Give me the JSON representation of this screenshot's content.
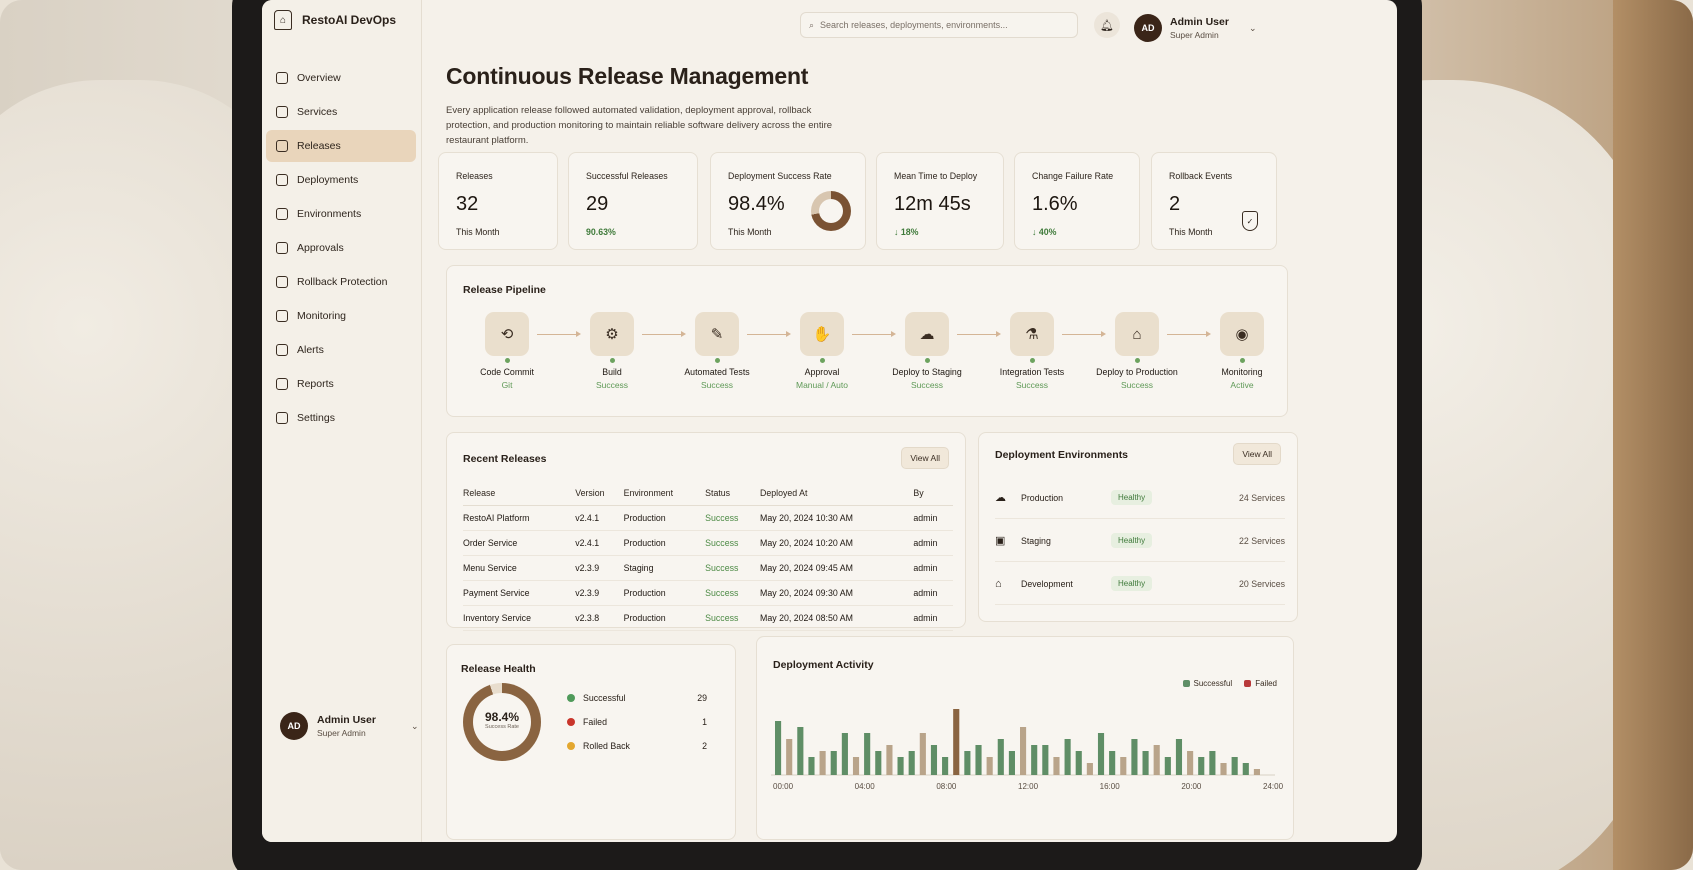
{
  "brand": {
    "name": "RestoAI DevOps"
  },
  "nav": [
    {
      "label": "Overview",
      "name": "overview"
    },
    {
      "label": "Services",
      "name": "services"
    },
    {
      "label": "Releases",
      "name": "releases",
      "active": true
    },
    {
      "label": "Deployments",
      "name": "deployments"
    },
    {
      "label": "Environments",
      "name": "environments"
    },
    {
      "label": "Approvals",
      "name": "approvals"
    },
    {
      "label": "Rollback Protection",
      "name": "rollback-protection"
    },
    {
      "label": "Monitoring",
      "name": "monitoring"
    },
    {
      "label": "Alerts",
      "name": "alerts"
    },
    {
      "label": "Reports",
      "name": "reports"
    },
    {
      "label": "Settings",
      "name": "settings"
    }
  ],
  "user": {
    "initials": "AD",
    "name": "Admin User",
    "role": "Super Admin"
  },
  "search": {
    "placeholder": "Search releases, deployments, environments..."
  },
  "page": {
    "title": "Continuous Release Management",
    "description": "Every application release followed automated validation, deployment approval, rollback protection, and production monitoring to maintain reliable software delivery across the entire restaurant platform."
  },
  "kpis": [
    {
      "label": "Releases",
      "value": "32",
      "sub": "This Month",
      "green": false
    },
    {
      "label": "Successful Releases",
      "value": "29",
      "sub": "90.63%",
      "green": true
    },
    {
      "label": "Deployment Success Rate",
      "value": "98.4%",
      "sub": "This Month",
      "green": false,
      "donut": true
    },
    {
      "label": "Mean Time to Deploy",
      "value": "12m 45s",
      "sub": "↓ 18%",
      "green": true
    },
    {
      "label": "Change Failure Rate",
      "value": "1.6%",
      "sub": "↓ 40%",
      "green": true
    },
    {
      "label": "Rollback Events",
      "value": "2",
      "sub": "This Month",
      "green": false,
      "shield": true
    }
  ],
  "pipeline": {
    "title": "Release Pipeline",
    "stages": [
      {
        "name": "Code Commit",
        "status": "Git",
        "icon": "⟲"
      },
      {
        "name": "Build",
        "status": "Success",
        "icon": "⚙"
      },
      {
        "name": "Automated Tests",
        "status": "Success",
        "icon": "✎"
      },
      {
        "name": "Approval",
        "status": "Manual / Auto",
        "icon": "✋"
      },
      {
        "name": "Deploy to Staging",
        "status": "Success",
        "icon": "☁"
      },
      {
        "name": "Integration Tests",
        "status": "Success",
        "icon": "⚗"
      },
      {
        "name": "Deploy to Production",
        "status": "Success",
        "icon": "⌂"
      },
      {
        "name": "Monitoring",
        "status": "Active",
        "icon": "◉"
      }
    ]
  },
  "recent": {
    "title": "Recent Releases",
    "view_all": "View All",
    "columns": [
      "Release",
      "Version",
      "Environment",
      "Status",
      "Deployed At",
      "By"
    ],
    "rows": [
      [
        "RestoAI Platform",
        "v2.4.1",
        "Production",
        "Success",
        "May 20, 2024 10:30 AM",
        "admin"
      ],
      [
        "Order Service",
        "v2.4.1",
        "Production",
        "Success",
        "May 20, 2024 10:20 AM",
        "admin"
      ],
      [
        "Menu Service",
        "v2.3.9",
        "Staging",
        "Success",
        "May 20, 2024 09:45 AM",
        "admin"
      ],
      [
        "Payment Service",
        "v2.3.9",
        "Production",
        "Success",
        "May 20, 2024 09:30 AM",
        "admin"
      ],
      [
        "Inventory Service",
        "v2.3.8",
        "Production",
        "Success",
        "May 20, 2024 08:50 AM",
        "admin"
      ]
    ]
  },
  "environments": {
    "title": "Deployment Environments",
    "view_all": "View All",
    "rows": [
      {
        "name": "Production",
        "status": "Healthy",
        "count": "24 Services",
        "icon": "☁"
      },
      {
        "name": "Staging",
        "status": "Healthy",
        "count": "22 Services",
        "icon": "▣"
      },
      {
        "name": "Development",
        "status": "Healthy",
        "count": "20 Services",
        "icon": "⌂"
      }
    ]
  },
  "health": {
    "title": "Release Health",
    "percent": "98.4%",
    "percent_label": "Success Rate",
    "legend": [
      {
        "label": "Successful",
        "value": "29",
        "color": "#4f9a5a"
      },
      {
        "label": "Failed",
        "value": "1",
        "color": "#c9352b"
      },
      {
        "label": "Rolled Back",
        "value": "2",
        "color": "#e3a72f"
      }
    ]
  },
  "chart_data": {
    "type": "bar",
    "title": "Deployment Activity",
    "x_ticks": [
      "00:00",
      "04:00",
      "08:00",
      "12:00",
      "16:00",
      "20:00",
      "24:00"
    ],
    "series": [
      {
        "name": "Successful",
        "color": "#5f8e66",
        "values": [
          9,
          6,
          8,
          3,
          4,
          4,
          7,
          3,
          7,
          4,
          5,
          3,
          4,
          7,
          5,
          3,
          8,
          4,
          5,
          3,
          6,
          4,
          8,
          5,
          5,
          3,
          6,
          4,
          2,
          7,
          4,
          3,
          6,
          4,
          5,
          3,
          6,
          4,
          3,
          4,
          2,
          3,
          2,
          1
        ]
      },
      {
        "name": "Failed",
        "color": "#b8393a",
        "values": [
          0,
          0,
          0,
          0,
          0,
          0,
          0,
          0,
          0,
          0,
          0,
          0,
          0,
          0,
          0,
          0,
          0,
          0,
          0,
          0,
          0,
          0,
          0,
          0,
          0,
          0,
          0,
          0,
          0,
          0,
          0,
          0,
          0,
          0,
          0,
          0,
          0,
          0,
          0,
          0,
          0,
          0,
          0,
          0
        ]
      }
    ],
    "highlight_values": [
      0,
      0,
      0,
      0,
      0,
      0,
      0,
      0,
      0,
      0,
      0,
      0,
      0,
      0,
      0,
      0,
      11,
      0,
      0,
      0,
      0,
      0,
      0,
      0,
      0,
      0,
      0,
      0,
      0,
      0,
      0,
      0,
      0,
      0,
      0,
      0,
      0,
      0,
      0,
      0,
      0,
      0,
      0,
      0
    ],
    "ylim": [
      0,
      12
    ]
  },
  "colors": {
    "accent": "#7a5233",
    "active_nav": "#e9d5bb",
    "success": "#4c8a44"
  }
}
